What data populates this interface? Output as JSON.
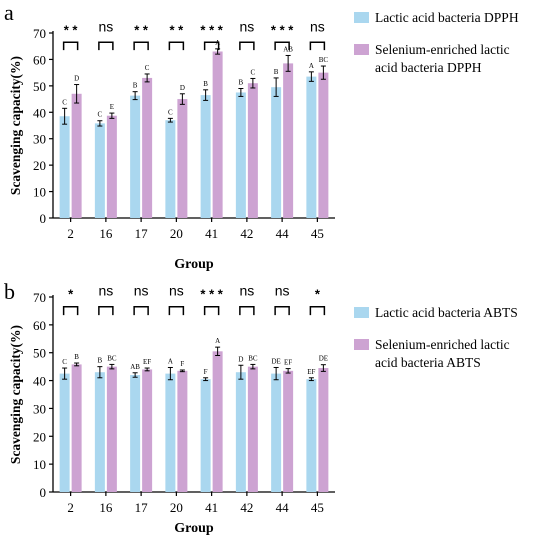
{
  "colors": {
    "bar1": "#aad7ef",
    "bar2": "#cda3d2",
    "axis": "#000000"
  },
  "chart_data": [
    {
      "panel_label": "a",
      "type": "bar",
      "title": "",
      "xlabel": "Group",
      "ylabel": "Scavenging capacity(%)",
      "ylim": [
        0,
        70
      ],
      "yticks": [
        0,
        10,
        20,
        30,
        40,
        50,
        60,
        70
      ],
      "categories": [
        "2",
        "16",
        "17",
        "20",
        "41",
        "42",
        "44",
        "45"
      ],
      "legend_position": "right",
      "series": [
        {
          "name": "Lactic acid bacteria DPPH",
          "color": "#aad7ef",
          "values": [
            38.5,
            35.8,
            46.3,
            37.0,
            46.5,
            47.5,
            49.5,
            53.5
          ],
          "errors": [
            3.0,
            1.0,
            1.5,
            0.7,
            2.0,
            1.5,
            3.5,
            1.8
          ],
          "letters": [
            "C",
            "C",
            "B",
            "C",
            "B",
            "B",
            "B",
            "A"
          ]
        },
        {
          "name": "Selenium-enriched lactic acid bacteria DPPH",
          "color": "#cda3d2",
          "values": [
            47.0,
            38.7,
            53.0,
            45.0,
            63.0,
            51.0,
            58.5,
            55.0
          ],
          "errors": [
            3.5,
            1.0,
            1.5,
            2.0,
            1.0,
            1.8,
            3.0,
            2.5
          ],
          "letters": [
            "D",
            "E",
            "C",
            "D",
            "A",
            "C",
            "AB",
            "BC"
          ]
        }
      ],
      "significance": [
        "* *",
        "ns",
        "* *",
        "* *",
        "* * *",
        "ns",
        "* * *",
        "ns"
      ]
    },
    {
      "panel_label": "b",
      "type": "bar",
      "title": "",
      "xlabel": "Group",
      "ylabel": "Scavenging capacity(%)",
      "ylim": [
        0,
        70
      ],
      "yticks": [
        0,
        10,
        20,
        30,
        40,
        50,
        60,
        70
      ],
      "categories": [
        "2",
        "16",
        "17",
        "20",
        "41",
        "42",
        "44",
        "45"
      ],
      "legend_position": "right",
      "series": [
        {
          "name": "Lactic acid bacteria ABTS",
          "color": "#aad7ef",
          "values": [
            42.5,
            43.0,
            42.0,
            42.5,
            40.5,
            43.0,
            42.5,
            40.5
          ],
          "errors": [
            2.0,
            2.0,
            0.8,
            2.2,
            0.5,
            2.5,
            2.2,
            0.5
          ],
          "letters": [
            "C",
            "B",
            "AB",
            "A",
            "F",
            "D",
            "DE",
            "EF"
          ]
        },
        {
          "name": "Selenium-enriched lactic acid bacteria ABTS",
          "color": "#cda3d2",
          "values": [
            45.8,
            45.0,
            44.0,
            43.5,
            50.5,
            45.0,
            43.5,
            44.5
          ],
          "errors": [
            0.5,
            0.8,
            0.5,
            0.3,
            1.5,
            0.8,
            0.8,
            1.2
          ],
          "letters": [
            "B",
            "BC",
            "EF",
            "F",
            "A",
            "BC",
            "EF",
            "DE"
          ]
        }
      ],
      "significance": [
        "*",
        "ns",
        "ns",
        "ns",
        "* * *",
        "ns",
        "ns",
        "*"
      ]
    }
  ]
}
